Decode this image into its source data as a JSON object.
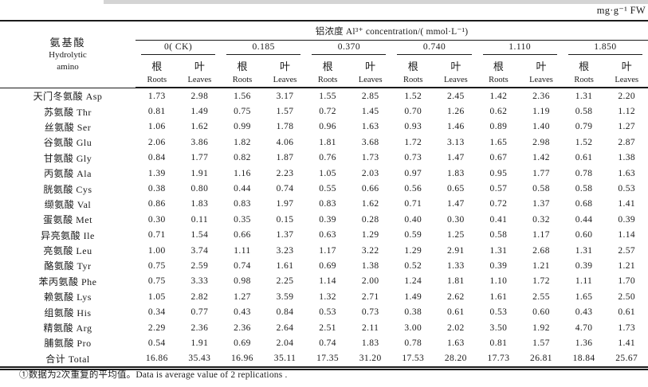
{
  "unit_label": "mg·g⁻¹ FW",
  "table": {
    "row_header": {
      "zh": "氨基酸",
      "en1": "Hydrolytic",
      "en2": "amino"
    },
    "group_header": "铝浓度 Al³⁺ concentration/( mmol·L⁻¹)",
    "concentrations": [
      "0( CK)",
      "0.185",
      "0.370",
      "0.740",
      "1.110",
      "1.850"
    ],
    "subcols": {
      "root_zh": "根",
      "root_en": "Roots",
      "leaf_zh": "叶",
      "leaf_en": "Leaves"
    },
    "rows": [
      {
        "label": "天门冬氨酸 Asp",
        "values": [
          "1.73",
          "2.98",
          "1.56",
          "3.17",
          "1.55",
          "2.85",
          "1.52",
          "2.45",
          "1.42",
          "2.36",
          "1.31",
          "2.20"
        ]
      },
      {
        "label": "苏氨酸 Thr",
        "values": [
          "0.81",
          "1.49",
          "0.75",
          "1.57",
          "0.72",
          "1.45",
          "0.70",
          "1.26",
          "0.62",
          "1.19",
          "0.58",
          "1.12"
        ]
      },
      {
        "label": "丝氨酸 Ser",
        "values": [
          "1.06",
          "1.62",
          "0.99",
          "1.78",
          "0.96",
          "1.63",
          "0.93",
          "1.46",
          "0.89",
          "1.40",
          "0.79",
          "1.27"
        ]
      },
      {
        "label": "谷氨酸 Glu",
        "values": [
          "2.06",
          "3.86",
          "1.82",
          "4.06",
          "1.81",
          "3.68",
          "1.72",
          "3.13",
          "1.65",
          "2.98",
          "1.52",
          "2.87"
        ]
      },
      {
        "label": "甘氨酸 Gly",
        "values": [
          "0.84",
          "1.77",
          "0.82",
          "1.87",
          "0.76",
          "1.73",
          "0.73",
          "1.47",
          "0.67",
          "1.42",
          "0.61",
          "1.38"
        ]
      },
      {
        "label": "丙氨酸 Ala",
        "values": [
          "1.39",
          "1.91",
          "1.16",
          "2.23",
          "1.05",
          "2.03",
          "0.97",
          "1.83",
          "0.95",
          "1.77",
          "0.78",
          "1.63"
        ]
      },
      {
        "label": "胱氨酸 Cys",
        "values": [
          "0.38",
          "0.80",
          "0.44",
          "0.74",
          "0.55",
          "0.66",
          "0.56",
          "0.65",
          "0.57",
          "0.58",
          "0.58",
          "0.53"
        ]
      },
      {
        "label": "缬氨酸 Val",
        "values": [
          "0.86",
          "1.83",
          "0.83",
          "1.97",
          "0.83",
          "1.62",
          "0.71",
          "1.47",
          "0.72",
          "1.37",
          "0.68",
          "1.41"
        ]
      },
      {
        "label": "蛋氨酸 Met",
        "values": [
          "0.30",
          "0.11",
          "0.35",
          "0.15",
          "0.39",
          "0.28",
          "0.40",
          "0.30",
          "0.41",
          "0.32",
          "0.44",
          "0.39"
        ]
      },
      {
        "label": "异亮氨酸 Ile",
        "values": [
          "0.71",
          "1.54",
          "0.66",
          "1.37",
          "0.63",
          "1.29",
          "0.59",
          "1.25",
          "0.58",
          "1.17",
          "0.60",
          "1.14"
        ]
      },
      {
        "label": "亮氨酸 Leu",
        "values": [
          "1.00",
          "3.74",
          "1.11",
          "3.23",
          "1.17",
          "3.22",
          "1.29",
          "2.91",
          "1.31",
          "2.68",
          "1.31",
          "2.57"
        ]
      },
      {
        "label": "酪氨酸 Tyr",
        "values": [
          "0.75",
          "2.59",
          "0.74",
          "1.61",
          "0.69",
          "1.38",
          "0.52",
          "1.33",
          "0.39",
          "1.21",
          "0.39",
          "1.21"
        ]
      },
      {
        "label": "苯丙氨酸 Phe",
        "values": [
          "0.75",
          "3.33",
          "0.98",
          "2.25",
          "1.14",
          "2.00",
          "1.24",
          "1.81",
          "1.10",
          "1.72",
          "1.11",
          "1.70"
        ]
      },
      {
        "label": "赖氨酸 Lys",
        "values": [
          "1.05",
          "2.82",
          "1.27",
          "3.59",
          "1.32",
          "2.71",
          "1.49",
          "2.62",
          "1.61",
          "2.55",
          "1.65",
          "2.50"
        ]
      },
      {
        "label": "组氨酸 His",
        "values": [
          "0.34",
          "0.77",
          "0.43",
          "0.84",
          "0.53",
          "0.73",
          "0.38",
          "0.61",
          "0.53",
          "0.60",
          "0.43",
          "0.61"
        ]
      },
      {
        "label": "精氨酸 Arg",
        "values": [
          "2.29",
          "2.36",
          "2.36",
          "2.64",
          "2.51",
          "2.11",
          "3.00",
          "2.02",
          "3.50",
          "1.92",
          "4.70",
          "1.73"
        ]
      },
      {
        "label": "脯氨酸 Pro",
        "values": [
          "0.54",
          "1.91",
          "0.69",
          "2.04",
          "0.74",
          "1.83",
          "0.78",
          "1.63",
          "0.81",
          "1.57",
          "1.36",
          "1.41"
        ]
      }
    ],
    "total_row": {
      "label": "合计 Total",
      "values": [
        "16.86",
        "35.43",
        "16.96",
        "35.11",
        "17.35",
        "31.20",
        "17.53",
        "28.20",
        "17.73",
        "26.81",
        "18.84",
        "25.67"
      ]
    }
  },
  "footnote": "①数据为2次重复的平均值。Data is average value of 2 replications ."
}
